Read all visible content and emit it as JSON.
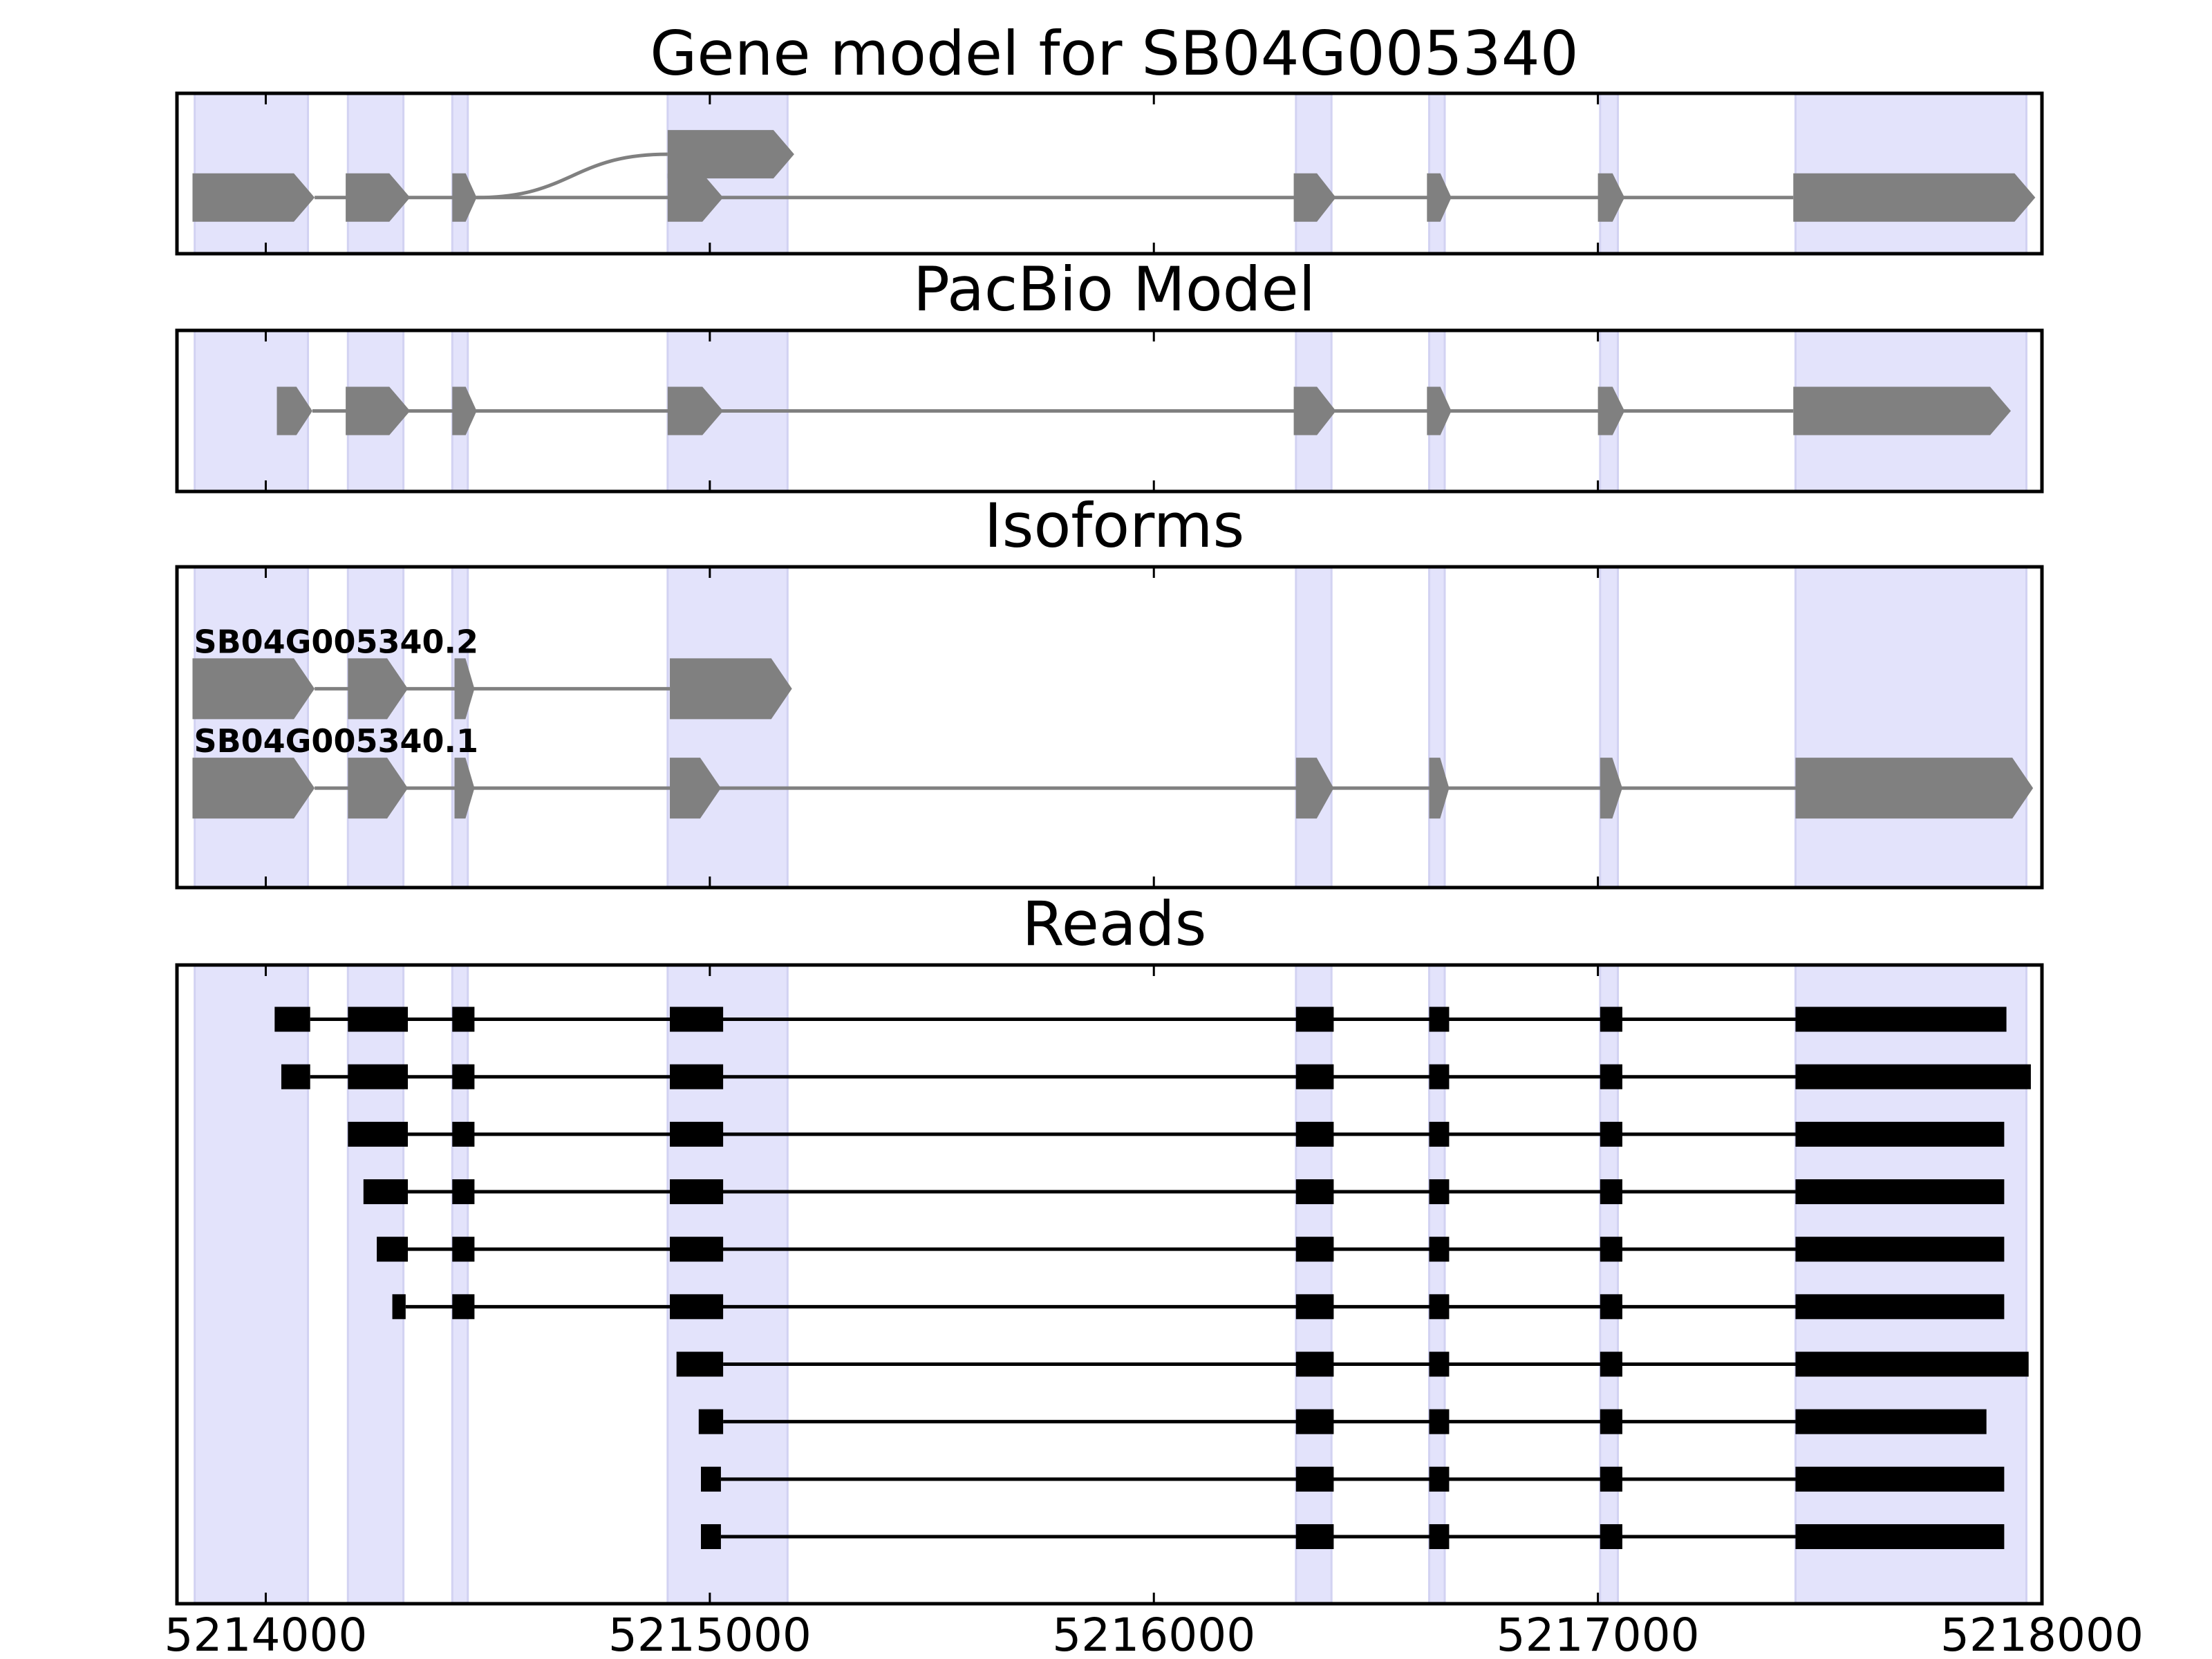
{
  "colors": {
    "background": "#ffffff",
    "shade": "#e3e3fb",
    "shade_edge": "#d2d2f2",
    "feature": "#808080",
    "read": "#000000",
    "frame": "#000000"
  },
  "chart_data": {
    "type": "gene-track",
    "xlim": [
      5213800,
      5218000
    ],
    "xticks": [
      5214000,
      5215000,
      5216000,
      5217000,
      5218000
    ],
    "xtick_labels": [
      "5214000",
      "5215000",
      "5216000",
      "5217000",
      "5218000"
    ],
    "shaded_exons": [
      [
        5213840,
        5214095
      ],
      [
        5214185,
        5214310
      ],
      [
        5214420,
        5214455
      ],
      [
        5214905,
        5215175
      ],
      [
        5216320,
        5216400
      ],
      [
        5216620,
        5216655
      ],
      [
        5217005,
        5217045
      ],
      [
        5217445,
        5217965
      ]
    ],
    "panels": [
      {
        "title": "Gene model for SB04G005340",
        "kind": "model",
        "rows": [
          {
            "label": "",
            "level": 0.62,
            "arrow": true,
            "exons": [
              [
                5214905,
                5215190
              ]
            ]
          },
          {
            "label": "",
            "level": 0.35,
            "arrow": true,
            "exons": [
              [
                5213835,
                5214110
              ],
              [
                5214180,
                5214325
              ],
              [
                5214420,
                5214475
              ],
              [
                5214905,
                5215030
              ],
              [
                5216315,
                5216410
              ],
              [
                5216615,
                5216670
              ],
              [
                5217000,
                5217060
              ],
              [
                5217440,
                5217985
              ]
            ]
          }
        ],
        "connector": {
          "from": 5214475,
          "to": 5214905,
          "from_level": 0.35,
          "to_level": 0.62
        }
      },
      {
        "title": "PacBio Model",
        "kind": "model",
        "rows": [
          {
            "label": "",
            "level": 0.5,
            "arrow": true,
            "exons": [
              [
                5214025,
                5214105
              ],
              [
                5214180,
                5214325
              ],
              [
                5214420,
                5214475
              ],
              [
                5214905,
                5215030
              ],
              [
                5216315,
                5216410
              ],
              [
                5216615,
                5216670
              ],
              [
                5217000,
                5217060
              ],
              [
                5217440,
                5217930
              ]
            ]
          }
        ]
      },
      {
        "title": "Isoforms",
        "kind": "model",
        "rows": [
          {
            "label": "SB04G005340.2",
            "level": 0.62,
            "arrow": true,
            "exons": [
              [
                5213835,
                5214110
              ],
              [
                5214185,
                5214320
              ],
              [
                5214425,
                5214470
              ],
              [
                5214910,
                5215185
              ]
            ]
          },
          {
            "label": "SB04G005340.1",
            "level": 0.31,
            "arrow": true,
            "exons": [
              [
                5213835,
                5214110
              ],
              [
                5214185,
                5214320
              ],
              [
                5214425,
                5214470
              ],
              [
                5214910,
                5215025
              ],
              [
                5216320,
                5216405
              ],
              [
                5216620,
                5216665
              ],
              [
                5217005,
                5217055
              ],
              [
                5217445,
                5217980
              ]
            ]
          }
        ]
      },
      {
        "title": "Reads",
        "kind": "reads",
        "rows": [
          {
            "label": "",
            "level": 0.915,
            "exons": [
              [
                5214020,
                5214100
              ],
              [
                5214185,
                5214320
              ],
              [
                5214420,
                5214470
              ],
              [
                5214910,
                5215030
              ],
              [
                5216320,
                5216405
              ],
              [
                5216620,
                5216665
              ],
              [
                5217005,
                5217055
              ],
              [
                5217445,
                5217920
              ]
            ]
          },
          {
            "label": "",
            "level": 0.825,
            "exons": [
              [
                5214035,
                5214100
              ],
              [
                5214185,
                5214320
              ],
              [
                5214420,
                5214470
              ],
              [
                5214910,
                5215030
              ],
              [
                5216320,
                5216405
              ],
              [
                5216620,
                5216665
              ],
              [
                5217005,
                5217055
              ],
              [
                5217445,
                5217975
              ]
            ]
          },
          {
            "label": "",
            "level": 0.735,
            "exons": [
              [
                5214185,
                5214320
              ],
              [
                5214420,
                5214470
              ],
              [
                5214910,
                5215030
              ],
              [
                5216320,
                5216405
              ],
              [
                5216620,
                5216665
              ],
              [
                5217005,
                5217055
              ],
              [
                5217445,
                5217915
              ]
            ]
          },
          {
            "label": "",
            "level": 0.645,
            "exons": [
              [
                5214220,
                5214320
              ],
              [
                5214420,
                5214470
              ],
              [
                5214910,
                5215030
              ],
              [
                5216320,
                5216405
              ],
              [
                5216620,
                5216665
              ],
              [
                5217005,
                5217055
              ],
              [
                5217445,
                5217915
              ]
            ]
          },
          {
            "label": "",
            "level": 0.555,
            "exons": [
              [
                5214250,
                5214320
              ],
              [
                5214420,
                5214470
              ],
              [
                5214910,
                5215030
              ],
              [
                5216320,
                5216405
              ],
              [
                5216620,
                5216665
              ],
              [
                5217005,
                5217055
              ],
              [
                5217445,
                5217915
              ]
            ]
          },
          {
            "label": "",
            "level": 0.465,
            "exons": [
              [
                5214285,
                5214315
              ],
              [
                5214420,
                5214470
              ],
              [
                5214910,
                5215030
              ],
              [
                5216320,
                5216405
              ],
              [
                5216620,
                5216665
              ],
              [
                5217005,
                5217055
              ],
              [
                5217445,
                5217915
              ]
            ]
          },
          {
            "label": "",
            "level": 0.375,
            "exons": [
              [
                5214925,
                5215030
              ],
              [
                5216320,
                5216405
              ],
              [
                5216620,
                5216665
              ],
              [
                5217005,
                5217055
              ],
              [
                5217445,
                5217970
              ]
            ]
          },
          {
            "label": "",
            "level": 0.285,
            "exons": [
              [
                5214975,
                5215030
              ],
              [
                5216320,
                5216405
              ],
              [
                5216620,
                5216665
              ],
              [
                5217005,
                5217055
              ],
              [
                5217445,
                5217875
              ]
            ]
          },
          {
            "label": "",
            "level": 0.195,
            "exons": [
              [
                5214980,
                5215025
              ],
              [
                5216320,
                5216405
              ],
              [
                5216620,
                5216665
              ],
              [
                5217005,
                5217055
              ],
              [
                5217445,
                5217915
              ]
            ]
          },
          {
            "label": "",
            "level": 0.105,
            "exons": [
              [
                5214980,
                5215025
              ],
              [
                5216320,
                5216405
              ],
              [
                5216620,
                5216665
              ],
              [
                5217005,
                5217055
              ],
              [
                5217445,
                5217915
              ]
            ]
          }
        ]
      }
    ]
  }
}
